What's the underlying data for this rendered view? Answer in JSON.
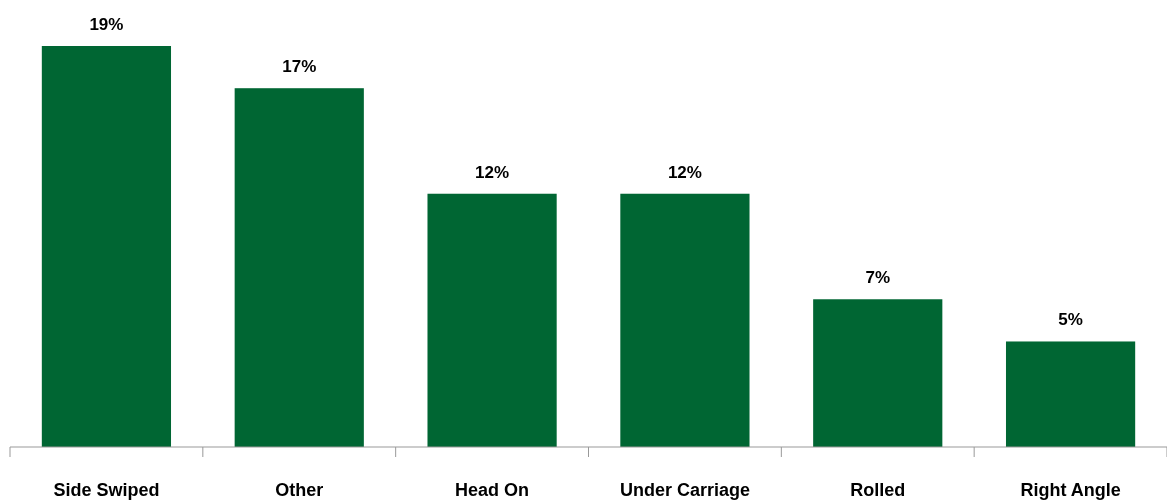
{
  "chart_data": {
    "type": "bar",
    "categories": [
      "Side Swiped",
      "Other",
      "Head On",
      "Under Carriage",
      "Rolled",
      "Right Angle"
    ],
    "values": [
      19,
      17,
      12,
      12,
      7,
      5
    ],
    "value_labels": [
      "19%",
      "17%",
      "12%",
      "12%",
      "7%",
      "5%"
    ],
    "color": "#006633"
  }
}
